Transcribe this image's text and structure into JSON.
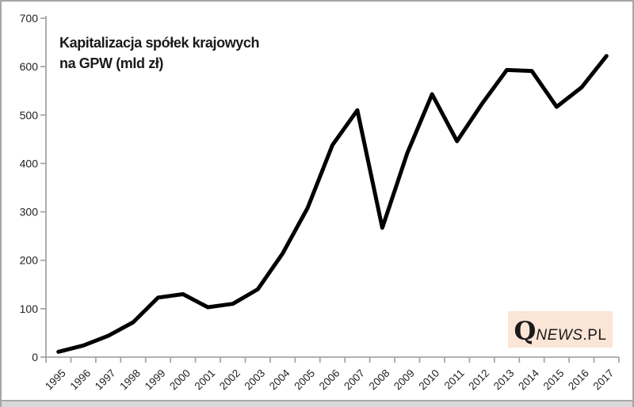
{
  "page": {
    "background": "#ffffff",
    "border_color": "#a6a6a6",
    "bottom_bar_color": "#d9d9d9",
    "bottom_bar_edge_color": "#a9a9a9"
  },
  "chart_data": {
    "type": "line",
    "title": "Kapitalizacja spółek krajowych na GPW (mld zł)",
    "title_lines": [
      "Kapitalizacja spółek krajowych",
      "na GPW (mld zł)"
    ],
    "categories": [
      "1995",
      "1996",
      "1997",
      "1998",
      "1999",
      "2000",
      "2001",
      "2002",
      "2003",
      "2004",
      "2005",
      "2006",
      "2007",
      "2008",
      "2009",
      "2010",
      "2011",
      "2012",
      "2013",
      "2014",
      "2015",
      "2016",
      "2017"
    ],
    "series": [
      {
        "name": "Kapitalizacja spółek krajowych na GPW (mld zł)",
        "values": [
          11,
          24,
          44,
          72,
          123,
          130,
          103,
          110,
          140,
          214,
          308,
          438,
          510,
          267,
          421,
          543,
          446,
          523,
          593,
          591,
          517,
          557,
          622
        ]
      }
    ],
    "xlabel": "",
    "ylabel": "",
    "ylim": [
      0,
      700
    ],
    "yticks": [
      0,
      100,
      200,
      300,
      400,
      500,
      600,
      700
    ],
    "grid": false,
    "legend": "none",
    "line_color": "#000000",
    "axis_color": "#a6a6a6",
    "tick_label_color": "#1f1f1f"
  },
  "logo": {
    "q": "Q",
    "news": "NEWS",
    "pl": ".PL",
    "background": "#fbe5d6",
    "text_color": "#1a1a1a"
  }
}
